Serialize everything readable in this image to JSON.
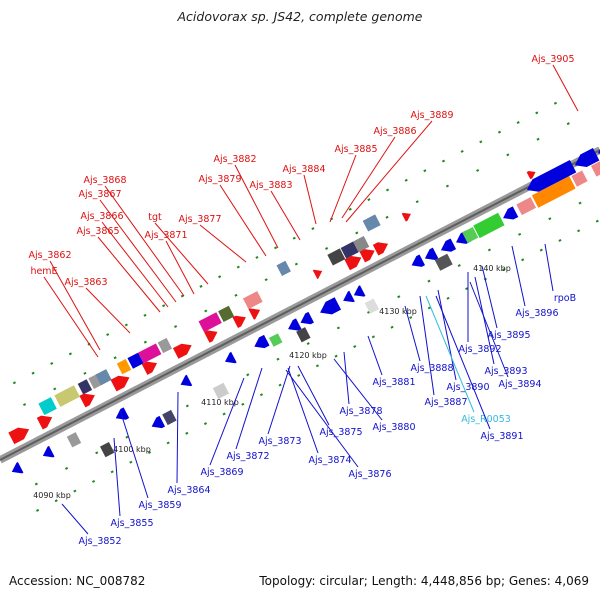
{
  "title": "Acidovorax sp. JS42, complete genome",
  "footer": {
    "accession": "Accession: NC_008782",
    "summary": "Topology: circular; Length: 4,448,856 bp; Genes: 4,069"
  },
  "colors": {
    "forward_label": "#dd1111",
    "reverse_label": "#1111cc",
    "rna_label": "#33bbdd",
    "backbone": "#7a7a7a",
    "tick": "#1f8a1f"
  },
  "ticks": [
    "4090 kbp",
    "4100 kbp",
    "4110 kbp",
    "4120 kbp",
    "4130 kbp",
    "4140 kbp"
  ],
  "forward_labels": [
    "Ajs_3905",
    "Ajs_3889",
    "Ajs_3886",
    "Ajs_3885",
    "Ajs_3884",
    "Ajs_3882",
    "Ajs_3883",
    "Ajs_3879",
    "Ajs_3868",
    "Ajs_3867",
    "Ajs_3877",
    "Ajs_3866",
    "tgt",
    "Ajs_3865",
    "Ajs_3871",
    "Ajs_3862",
    "hemE",
    "Ajs_3863"
  ],
  "reverse_labels": [
    "Ajs_3896",
    "rpoB",
    "Ajs_3895",
    "Ajs_3892",
    "Ajs_3893",
    "Ajs_3888",
    "Ajs_3894",
    "Ajs_3890",
    "Ajs_3881",
    "Ajs_3887",
    "Ajs_R0053",
    "Ajs_3878",
    "Ajs_3880",
    "Ajs_3891",
    "Ajs_3875",
    "Ajs_3873",
    "Ajs_3872",
    "Ajs_3874",
    "Ajs_3876",
    "Ajs_3869",
    "Ajs_3864",
    "Ajs_3859",
    "Ajs_3855",
    "Ajs_3852"
  ]
}
